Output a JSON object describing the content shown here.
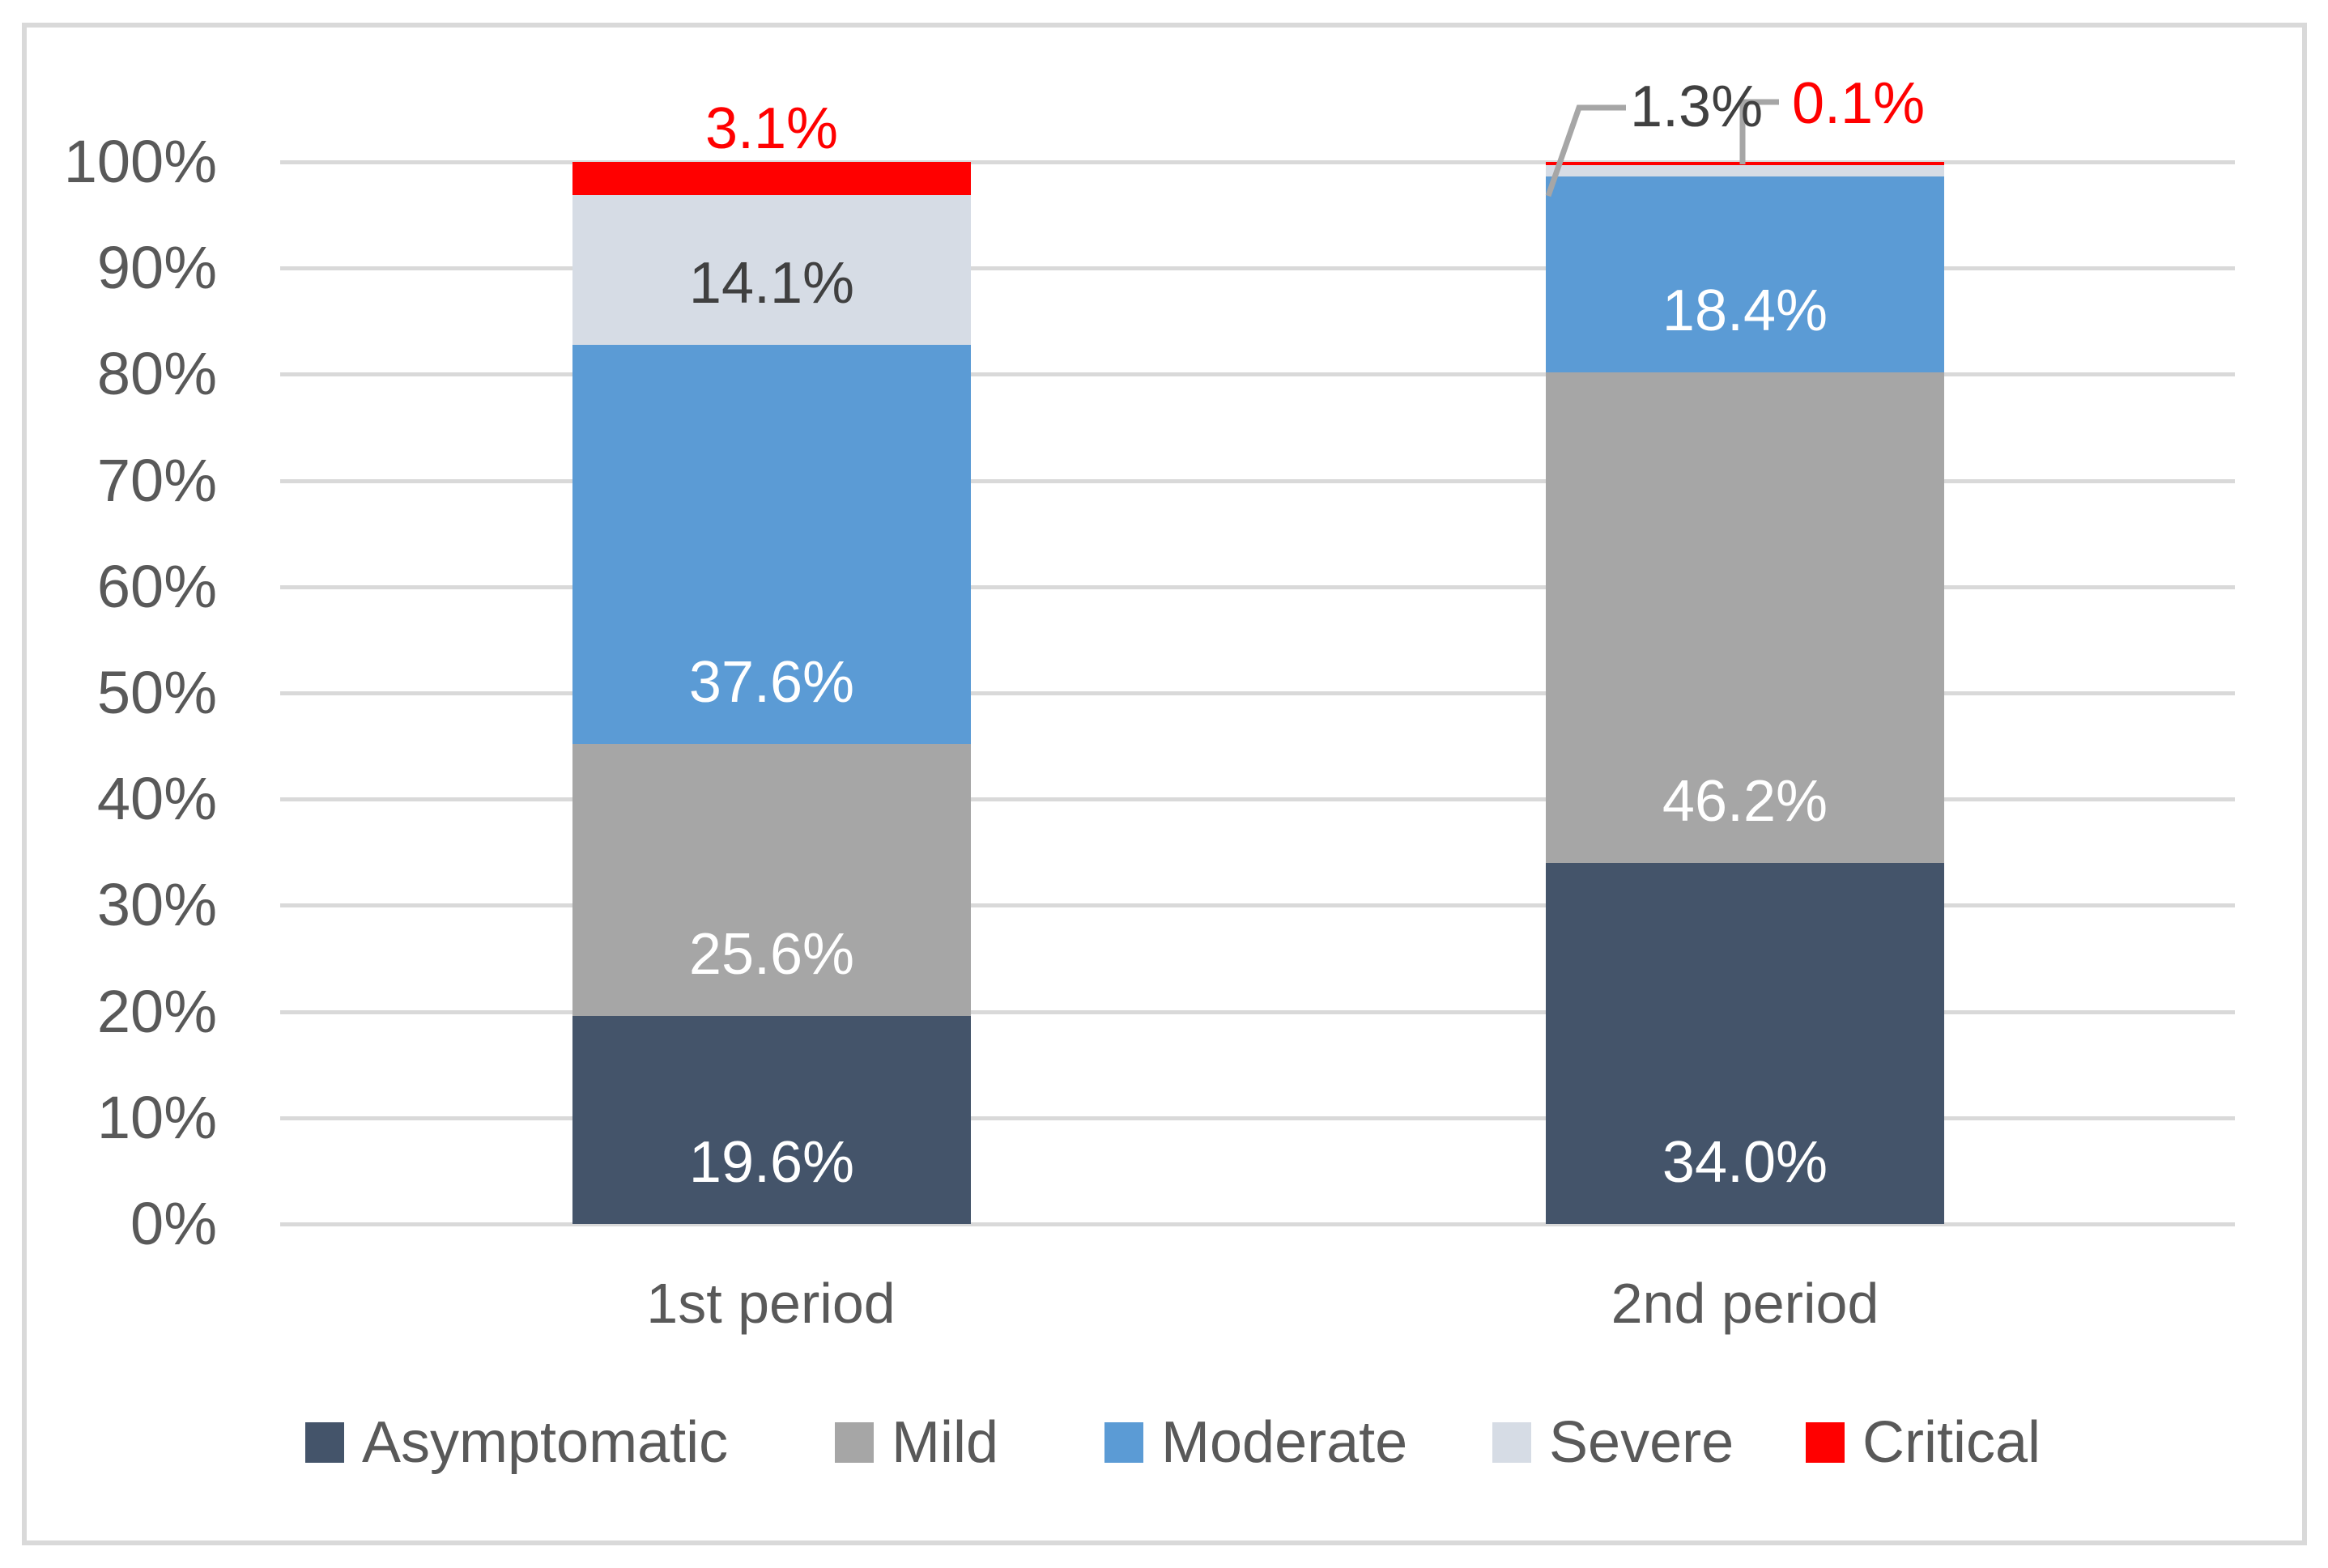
{
  "chart_data": {
    "type": "bar",
    "variant": "stacked-100",
    "title": "",
    "xlabel": "",
    "ylabel": "",
    "grid": true,
    "legend_position": "bottom",
    "y_axis": {
      "min": 0,
      "max": 100,
      "tick_step": 10,
      "ticks": [
        "0%",
        "10%",
        "20%",
        "30%",
        "40%",
        "50%",
        "60%",
        "70%",
        "80%",
        "90%",
        "100%"
      ]
    },
    "categories": [
      "1st period",
      "2nd period"
    ],
    "series": [
      {
        "name": "Asymptomatic",
        "color": "#44546A",
        "points": [
          {
            "value": 19.6,
            "label": "19.6%",
            "label_color": "#FFFFFF",
            "placement": "inside"
          },
          {
            "value": 34.0,
            "label": "34.0%",
            "label_color": "#FFFFFF",
            "placement": "inside"
          }
        ]
      },
      {
        "name": "Mild",
        "color": "#A6A6A6",
        "points": [
          {
            "value": 25.6,
            "label": "25.6%",
            "label_color": "#FFFFFF",
            "placement": "inside"
          },
          {
            "value": 46.2,
            "label": "46.2%",
            "label_color": "#FFFFFF",
            "placement": "inside"
          }
        ]
      },
      {
        "name": "Moderate",
        "color": "#5B9BD5",
        "points": [
          {
            "value": 37.6,
            "label": "37.6%",
            "label_color": "#FFFFFF",
            "placement": "inside"
          },
          {
            "value": 18.4,
            "label": "18.4%",
            "label_color": "#FFFFFF",
            "placement": "inside"
          }
        ]
      },
      {
        "name": "Severe",
        "color": "#D6DCE5",
        "points": [
          {
            "value": 14.1,
            "label": "14.1%",
            "label_color": "#404040",
            "placement": "inside"
          },
          {
            "value": 1.3,
            "label": "1.3%",
            "label_color": "#404040",
            "placement": "callout"
          }
        ]
      },
      {
        "name": "Critical",
        "color": "#FF0000",
        "points": [
          {
            "value": 3.1,
            "label": "3.1%",
            "label_color": "#FF0000",
            "placement": "outside-top"
          },
          {
            "value": 0.1,
            "label": "0.1%",
            "label_color": "#FF0000",
            "placement": "callout"
          }
        ]
      }
    ],
    "colors": {
      "gridline": "#D9D9D9",
      "frame_border": "#D9D9D9",
      "axis_text": "#595959",
      "leader_line": "#A6A6A6"
    }
  }
}
